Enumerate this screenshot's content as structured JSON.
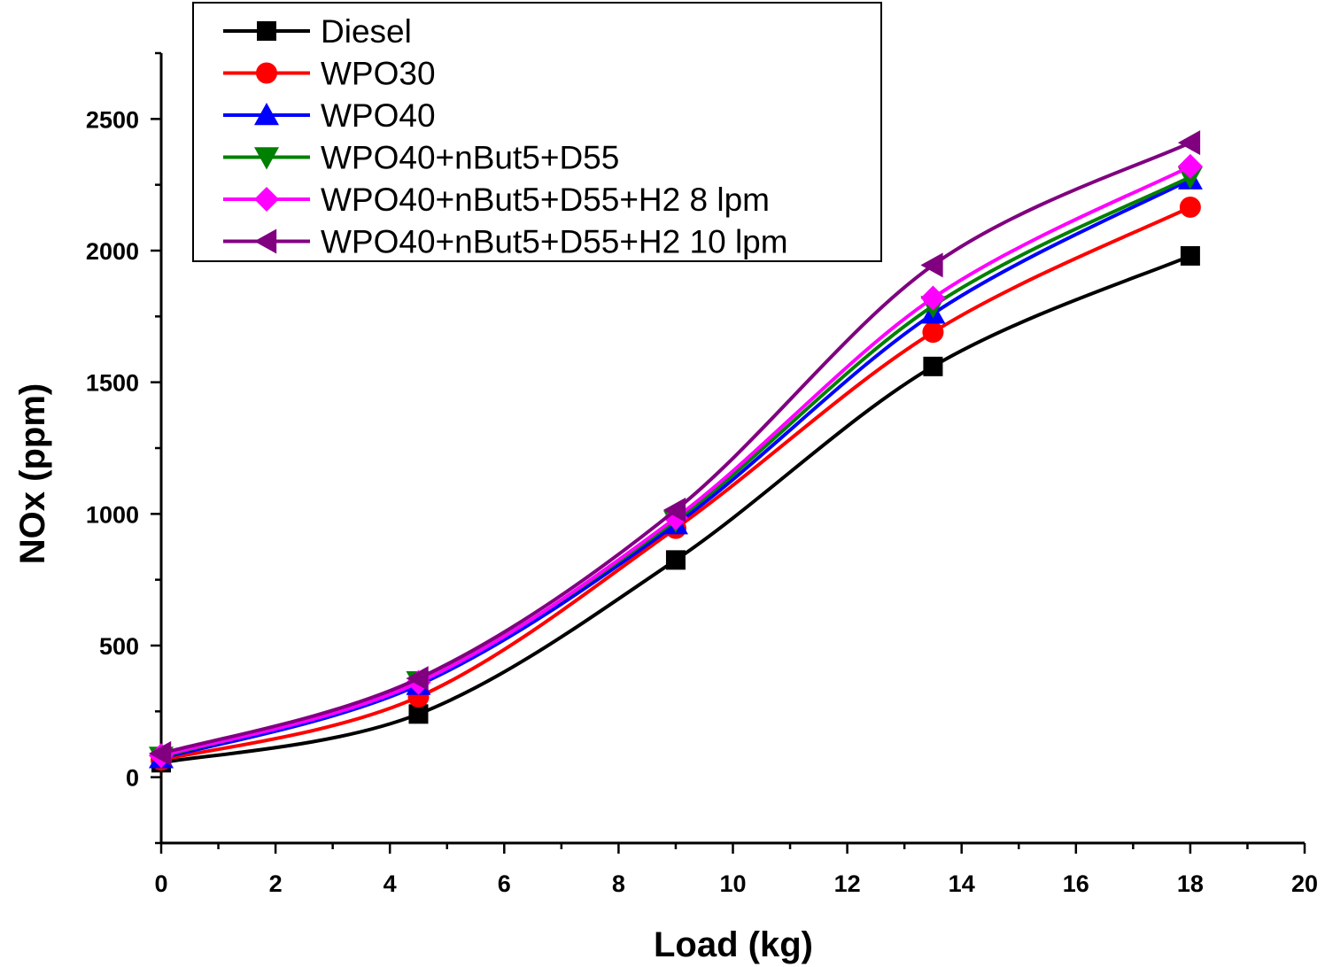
{
  "chart_data": {
    "type": "line",
    "xlabel": "Load (kg)",
    "ylabel": "NOx (ppm)",
    "xlim": [
      0,
      20
    ],
    "ylim": [
      -250,
      2750
    ],
    "x_ticks": [
      0,
      2,
      4,
      6,
      8,
      10,
      12,
      14,
      16,
      18,
      20
    ],
    "x_tick_labels": [
      "0",
      "2",
      "4",
      "6",
      "8",
      "10",
      "12",
      "14",
      "16",
      "18",
      "20"
    ],
    "y_ticks": [
      0,
      500,
      1000,
      1500,
      2000,
      2500
    ],
    "y_tick_labels": [
      "0",
      "500",
      "1000",
      "1500",
      "2000",
      "2500"
    ],
    "grid": false,
    "legend_position": "top-left",
    "x": [
      0,
      4.5,
      9,
      13.5,
      18
    ],
    "series": [
      {
        "name": "Diesel",
        "color": "#000000",
        "marker": "square",
        "values": [
          55,
          240,
          825,
          1560,
          1980
        ]
      },
      {
        "name": "WPO30",
        "color": "#ff0000",
        "marker": "circle",
        "values": [
          65,
          305,
          945,
          1690,
          2165
        ]
      },
      {
        "name": "WPO40",
        "color": "#0000ff",
        "marker": "triangle-up",
        "values": [
          72,
          350,
          960,
          1760,
          2270
        ]
      },
      {
        "name": "WPO40+nBut5+D55",
        "color": "#008000",
        "marker": "triangle-down",
        "values": [
          78,
          365,
          975,
          1790,
          2280
        ]
      },
      {
        "name": "WPO40+nBut5+D55+H2 8 lpm",
        "color": "#ff00ff",
        "marker": "diamond",
        "values": [
          82,
          360,
          985,
          1820,
          2320
        ]
      },
      {
        "name": "WPO40+nBut5+D55+H2 10 lpm",
        "color": "#800080",
        "marker": "triangle-left",
        "values": [
          90,
          375,
          1015,
          1945,
          2410
        ]
      }
    ]
  }
}
